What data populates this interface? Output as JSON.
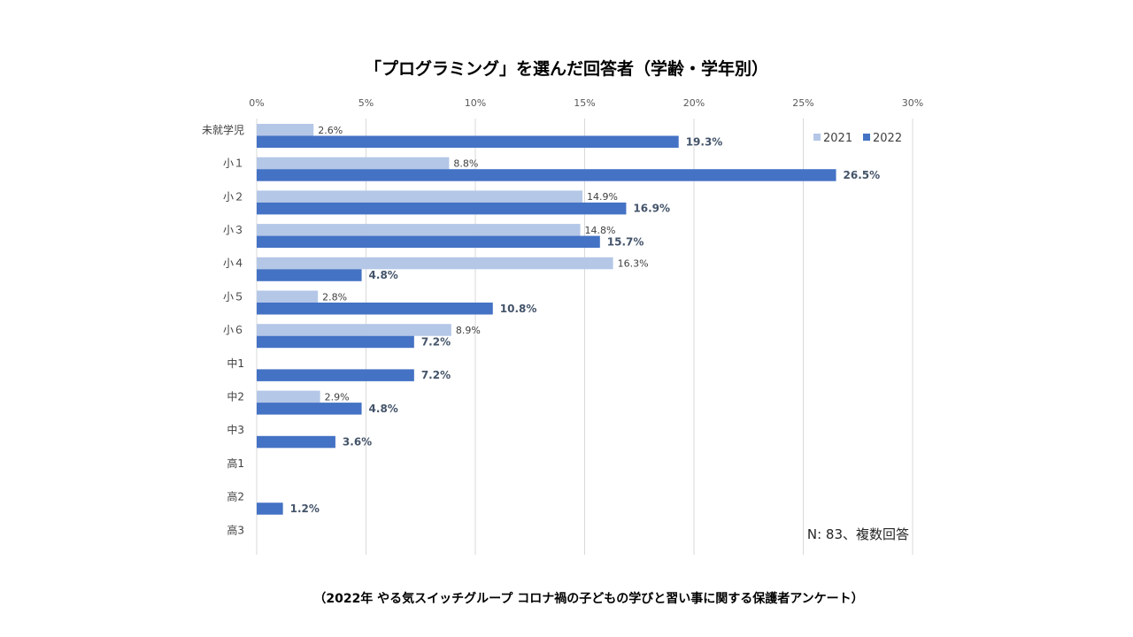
{
  "chart_data": {
    "type": "bar",
    "orientation": "horizontal",
    "title": "「プログラミング」を選んだ回答者（学齢・学年別）",
    "categories": [
      "未就学児",
      "小１",
      "小２",
      "小３",
      "小４",
      "小５",
      "小６",
      "中1",
      "中2",
      "中3",
      "高1",
      "高2",
      "高3"
    ],
    "series": [
      {
        "name": "2021",
        "color": "#B4C7E7",
        "values": [
          2.6,
          8.8,
          14.9,
          14.8,
          16.3,
          2.8,
          8.9,
          null,
          2.9,
          null,
          null,
          null,
          null
        ]
      },
      {
        "name": "2022",
        "color": "#4472C4",
        "values": [
          19.3,
          26.5,
          16.9,
          15.7,
          4.8,
          10.8,
          7.2,
          7.2,
          4.8,
          3.6,
          null,
          1.2,
          null
        ]
      }
    ],
    "xlim": [
      0,
      30
    ],
    "x_ticks": [
      "0%",
      "5%",
      "10%",
      "15%",
      "20%",
      "25%",
      "30%"
    ],
    "x_axis_position": "top",
    "grid": true,
    "legend_position": "top-right",
    "value_suffix": "%",
    "annotation": "N: 83、複数回答",
    "source": "（2022年 やる気スイッチグループ コロナ禍の子どもの学びと習い事に関する保護者アンケート）"
  }
}
